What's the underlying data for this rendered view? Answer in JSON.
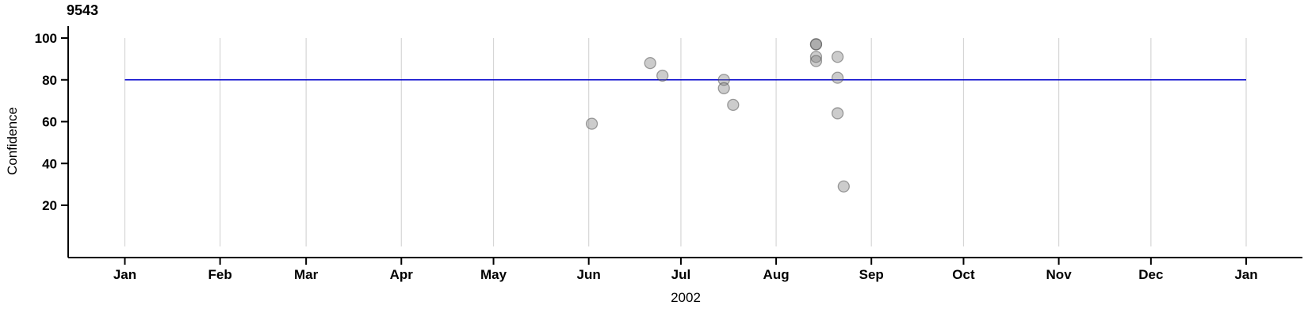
{
  "chart_data": {
    "type": "scatter",
    "title": "9543",
    "xlabel": "2002",
    "ylabel": "Confidence",
    "x_axis": {
      "unit": "day_of_year_2002",
      "min": 0,
      "max": 365,
      "ticks": [
        {
          "label": "Jan",
          "day": 0
        },
        {
          "label": "Feb",
          "day": 31
        },
        {
          "label": "Mar",
          "day": 59
        },
        {
          "label": "Apr",
          "day": 90
        },
        {
          "label": "May",
          "day": 120
        },
        {
          "label": "Jun",
          "day": 151
        },
        {
          "label": "Jul",
          "day": 181
        },
        {
          "label": "Aug",
          "day": 212
        },
        {
          "label": "Sep",
          "day": 243
        },
        {
          "label": "Oct",
          "day": 273
        },
        {
          "label": "Nov",
          "day": 304
        },
        {
          "label": "Dec",
          "day": 334
        },
        {
          "label": "Jan",
          "day": 365
        }
      ]
    },
    "y_axis": {
      "min": 0,
      "max": 100,
      "ticks": [
        20,
        40,
        60,
        80,
        100
      ]
    },
    "grid": {
      "vertical": true,
      "horizontal": false,
      "color": "#d6d6d6"
    },
    "reference_line": {
      "value": 80,
      "color": "#0000cc"
    },
    "points": [
      {
        "date": "Jun 2",
        "day": 152,
        "value": 59
      },
      {
        "date": "Jun 21",
        "day": 171,
        "value": 88
      },
      {
        "date": "Jun 25",
        "day": 175,
        "value": 82
      },
      {
        "date": "Jul 15",
        "day": 195,
        "value": 80
      },
      {
        "date": "Jul 15",
        "day": 195,
        "value": 76
      },
      {
        "date": "Jul 18",
        "day": 198,
        "value": 68
      },
      {
        "date": "Aug 14",
        "day": 225,
        "value": 97
      },
      {
        "date": "Aug 14",
        "day": 225,
        "value": 97
      },
      {
        "date": "Aug 14",
        "day": 225,
        "value": 91
      },
      {
        "date": "Aug 14",
        "day": 225,
        "value": 89
      },
      {
        "date": "Aug 21",
        "day": 232,
        "value": 91
      },
      {
        "date": "Aug 21",
        "day": 232,
        "value": 81
      },
      {
        "date": "Aug 21",
        "day": 232,
        "value": 64
      },
      {
        "date": "Aug 23",
        "day": 234,
        "value": 29
      }
    ],
    "point_style": {
      "radius": 7,
      "fill": "rgba(128,128,128,0.40)",
      "stroke": "rgba(75,75,75,0.50)"
    },
    "axis_color": "#000000",
    "background": "#ffffff",
    "legend": null
  }
}
